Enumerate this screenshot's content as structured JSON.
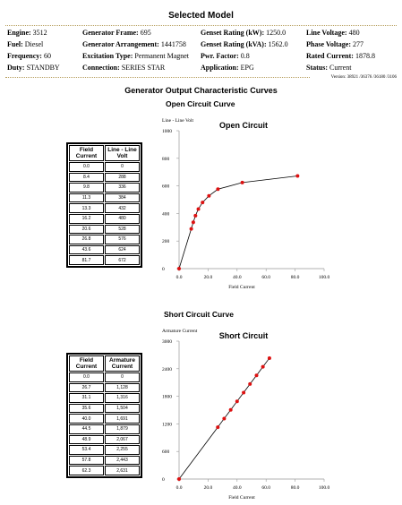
{
  "header": {
    "title": "Selected Model",
    "version": "Version: 38921 /36376 /36180 /3106"
  },
  "specs": [
    [
      {
        "label": "Engine:",
        "value": "3512"
      },
      {
        "label": "Generator Frame:",
        "value": "695"
      },
      {
        "label": "Genset Rating (kW):",
        "value": "1250.0"
      },
      {
        "label": "Line Voltage:",
        "value": "480"
      }
    ],
    [
      {
        "label": "Fuel:",
        "value": "Diesel"
      },
      {
        "label": "Generator Arrangement:",
        "value": "1441758"
      },
      {
        "label": "Genset Rating (kVA):",
        "value": "1562.0"
      },
      {
        "label": "Phase Voltage:",
        "value": "277"
      }
    ],
    [
      {
        "label": "Frequency:",
        "value": "60"
      },
      {
        "label": "Excitation Type:",
        "value": "Permanent Magnet"
      },
      {
        "label": "Pwr. Factor:",
        "value": "0.8"
      },
      {
        "label": "Rated Current:",
        "value": "1878.8"
      }
    ],
    [
      {
        "label": "Duty:",
        "value": "STANDBY"
      },
      {
        "label": "Connection:",
        "value": "SERIES STAR"
      },
      {
        "label": "Application:",
        "value": "EPG"
      },
      {
        "label": "Status:",
        "value": "Current"
      }
    ]
  ],
  "section_title": "Generator Output Characteristic Curves",
  "curves": [
    {
      "heading": "Open Circuit Curve",
      "table": {
        "header": [
          "Field Current",
          "Line - Line Volt"
        ],
        "rows": [
          [
            "0.0",
            "0"
          ],
          [
            "8.4",
            "288"
          ],
          [
            "9.8",
            "336"
          ],
          [
            "11.3",
            "384"
          ],
          [
            "13.3",
            "432"
          ],
          [
            "16.2",
            "480"
          ],
          [
            "20.6",
            "528"
          ],
          [
            "26.8",
            "576"
          ],
          [
            "43.6",
            "624"
          ],
          [
            "81.7",
            "672"
          ]
        ]
      },
      "chart": {
        "type": "line",
        "title": "Open Circuit",
        "y_label": "Line - Line Volt",
        "x_label": "Field Current",
        "color": "#dd1111",
        "x": [
          0,
          8.4,
          9.8,
          11.3,
          13.3,
          16.2,
          20.6,
          26.8,
          43.6,
          81.7
        ],
        "values": [
          0,
          288,
          336,
          384,
          432,
          480,
          528,
          576,
          624,
          672
        ],
        "xlim": [
          0,
          100
        ],
        "ylim": [
          0,
          1000
        ],
        "xticks": [
          {
            "value": 0,
            "label": "0.0"
          },
          {
            "value": 20,
            "label": "20.0"
          },
          {
            "value": 40,
            "label": "40.0"
          },
          {
            "value": 60,
            "label": "60.0"
          },
          {
            "value": 80,
            "label": "80.0"
          },
          {
            "value": 100,
            "label": "100.0"
          }
        ],
        "yticks": [
          0,
          200,
          400,
          600,
          800,
          1000
        ]
      }
    },
    {
      "heading": "Short Circuit Curve",
      "table": {
        "header": [
          "Field Current",
          "Armature Current"
        ],
        "rows": [
          [
            "0.0",
            "0"
          ],
          [
            "26.7",
            "1,128"
          ],
          [
            "31.1",
            "1,316"
          ],
          [
            "35.6",
            "1,504"
          ],
          [
            "40.0",
            "1,691"
          ],
          [
            "44.5",
            "1,879"
          ],
          [
            "48.9",
            "2,067"
          ],
          [
            "53.4",
            "2,255"
          ],
          [
            "57.8",
            "2,443"
          ],
          [
            "62.3",
            "2,631"
          ]
        ]
      },
      "chart": {
        "type": "line",
        "title": "Short Circuit",
        "y_label": "Armature Current",
        "x_label": "Field Current",
        "color": "#dd1111",
        "x": [
          0,
          26.7,
          31.1,
          35.6,
          40,
          44.5,
          48.9,
          53.4,
          57.8,
          62.3
        ],
        "values": [
          0,
          1128,
          1316,
          1504,
          1691,
          1879,
          2067,
          2255,
          2443,
          2631
        ],
        "xlim": [
          0,
          100
        ],
        "ylim": [
          0,
          3000
        ],
        "xticks": [
          {
            "value": 0,
            "label": "0.0"
          },
          {
            "value": 20,
            "label": "20.0"
          },
          {
            "value": 40,
            "label": "40.0"
          },
          {
            "value": 60,
            "label": "60.0"
          },
          {
            "value": 80,
            "label": "80.0"
          },
          {
            "value": 100,
            "label": "100.0"
          }
        ],
        "yticks": [
          0,
          600,
          1200,
          1800,
          2400,
          3000
        ]
      }
    }
  ]
}
